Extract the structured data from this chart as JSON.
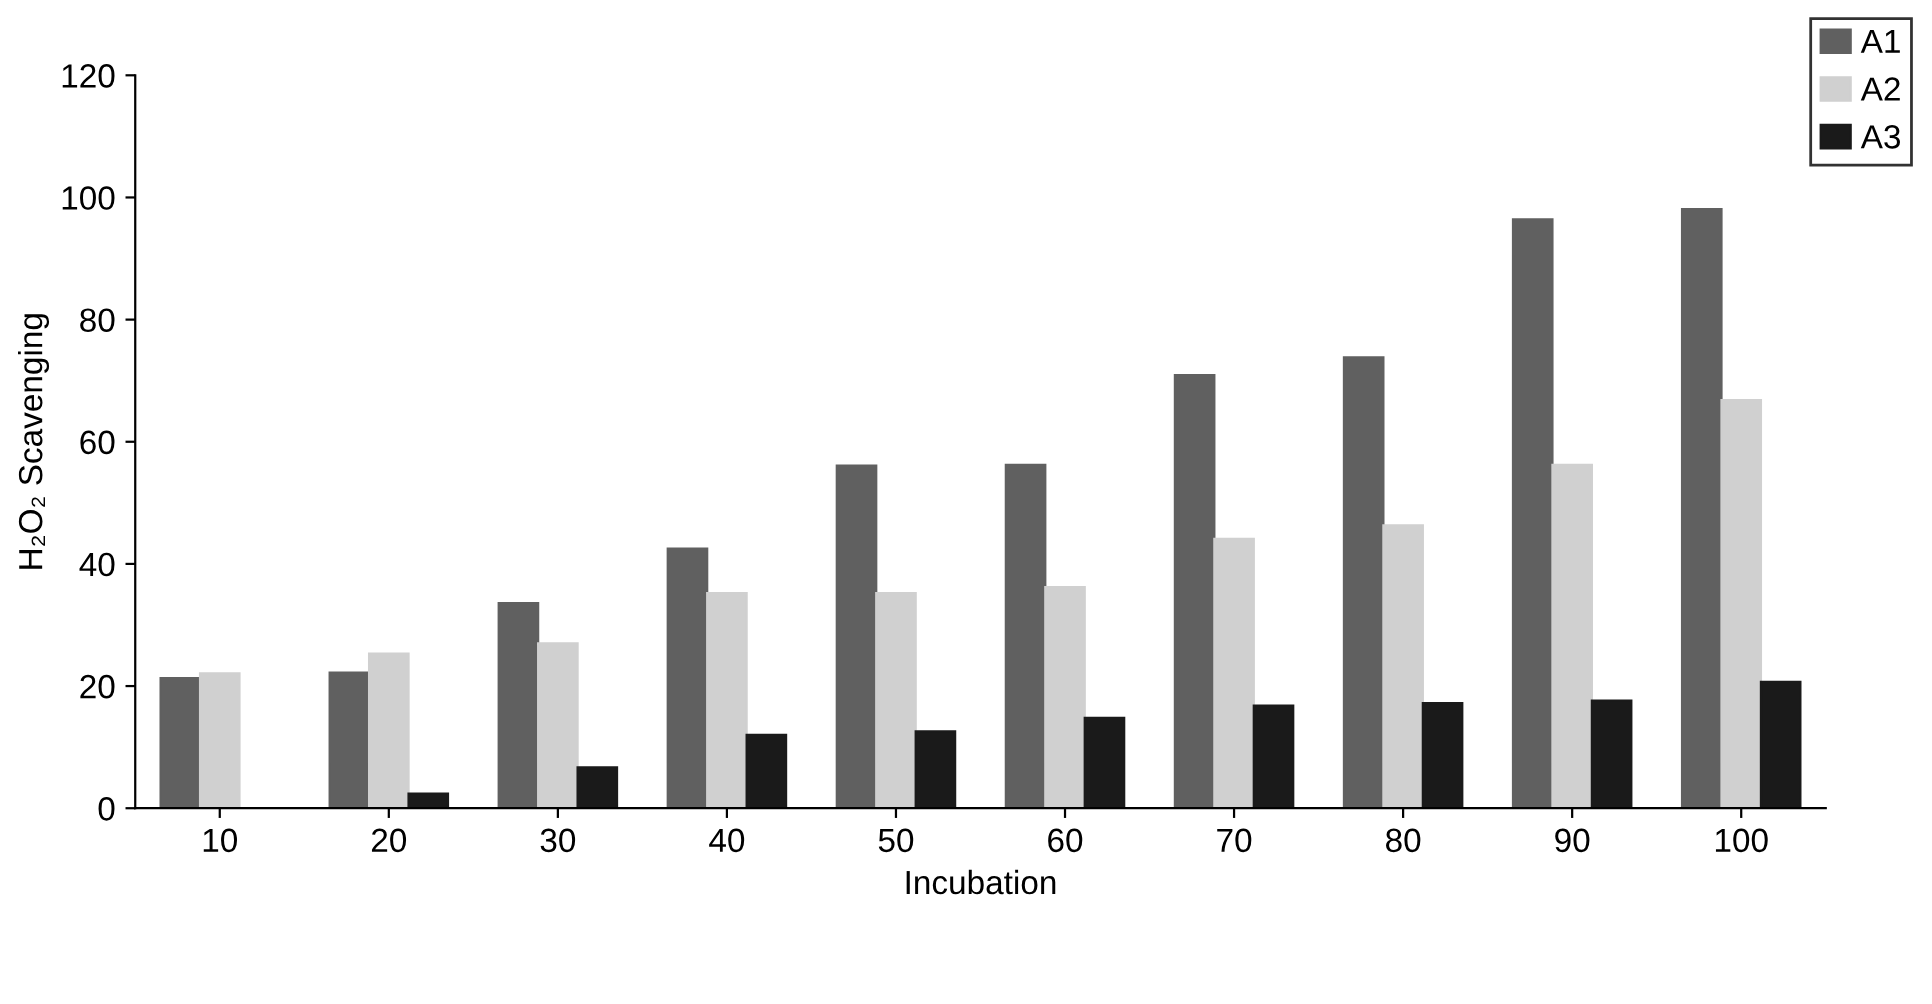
{
  "chart_data": {
    "type": "bar",
    "xlabel": "Incubation",
    "ylabel": "H₂O₂ Scavenging",
    "categories": [
      "10",
      "20",
      "30",
      "40",
      "50",
      "60",
      "70",
      "80",
      "90",
      "100"
    ],
    "series": [
      {
        "name": "A1",
        "color": "#606060",
        "values": [
          21.3,
          22.2,
          33.6,
          42.5,
          56.1,
          56.2,
          70.9,
          73.8,
          96.4,
          98.1
        ]
      },
      {
        "name": "A2",
        "color": "#d0d0d0",
        "values": [
          22.1,
          25.3,
          27.0,
          35.2,
          35.2,
          36.2,
          44.1,
          46.3,
          56.2,
          66.8
        ]
      },
      {
        "name": "A3",
        "color": "#1a1a1a",
        "values": [
          0,
          2.4,
          6.7,
          12.0,
          12.6,
          14.8,
          16.8,
          17.2,
          17.6,
          20.7
        ]
      }
    ],
    "ylim": [
      0,
      120
    ],
    "yticks": [
      0,
      20,
      40,
      60,
      80,
      100,
      120
    ],
    "grid": false,
    "legend": "top right"
  }
}
